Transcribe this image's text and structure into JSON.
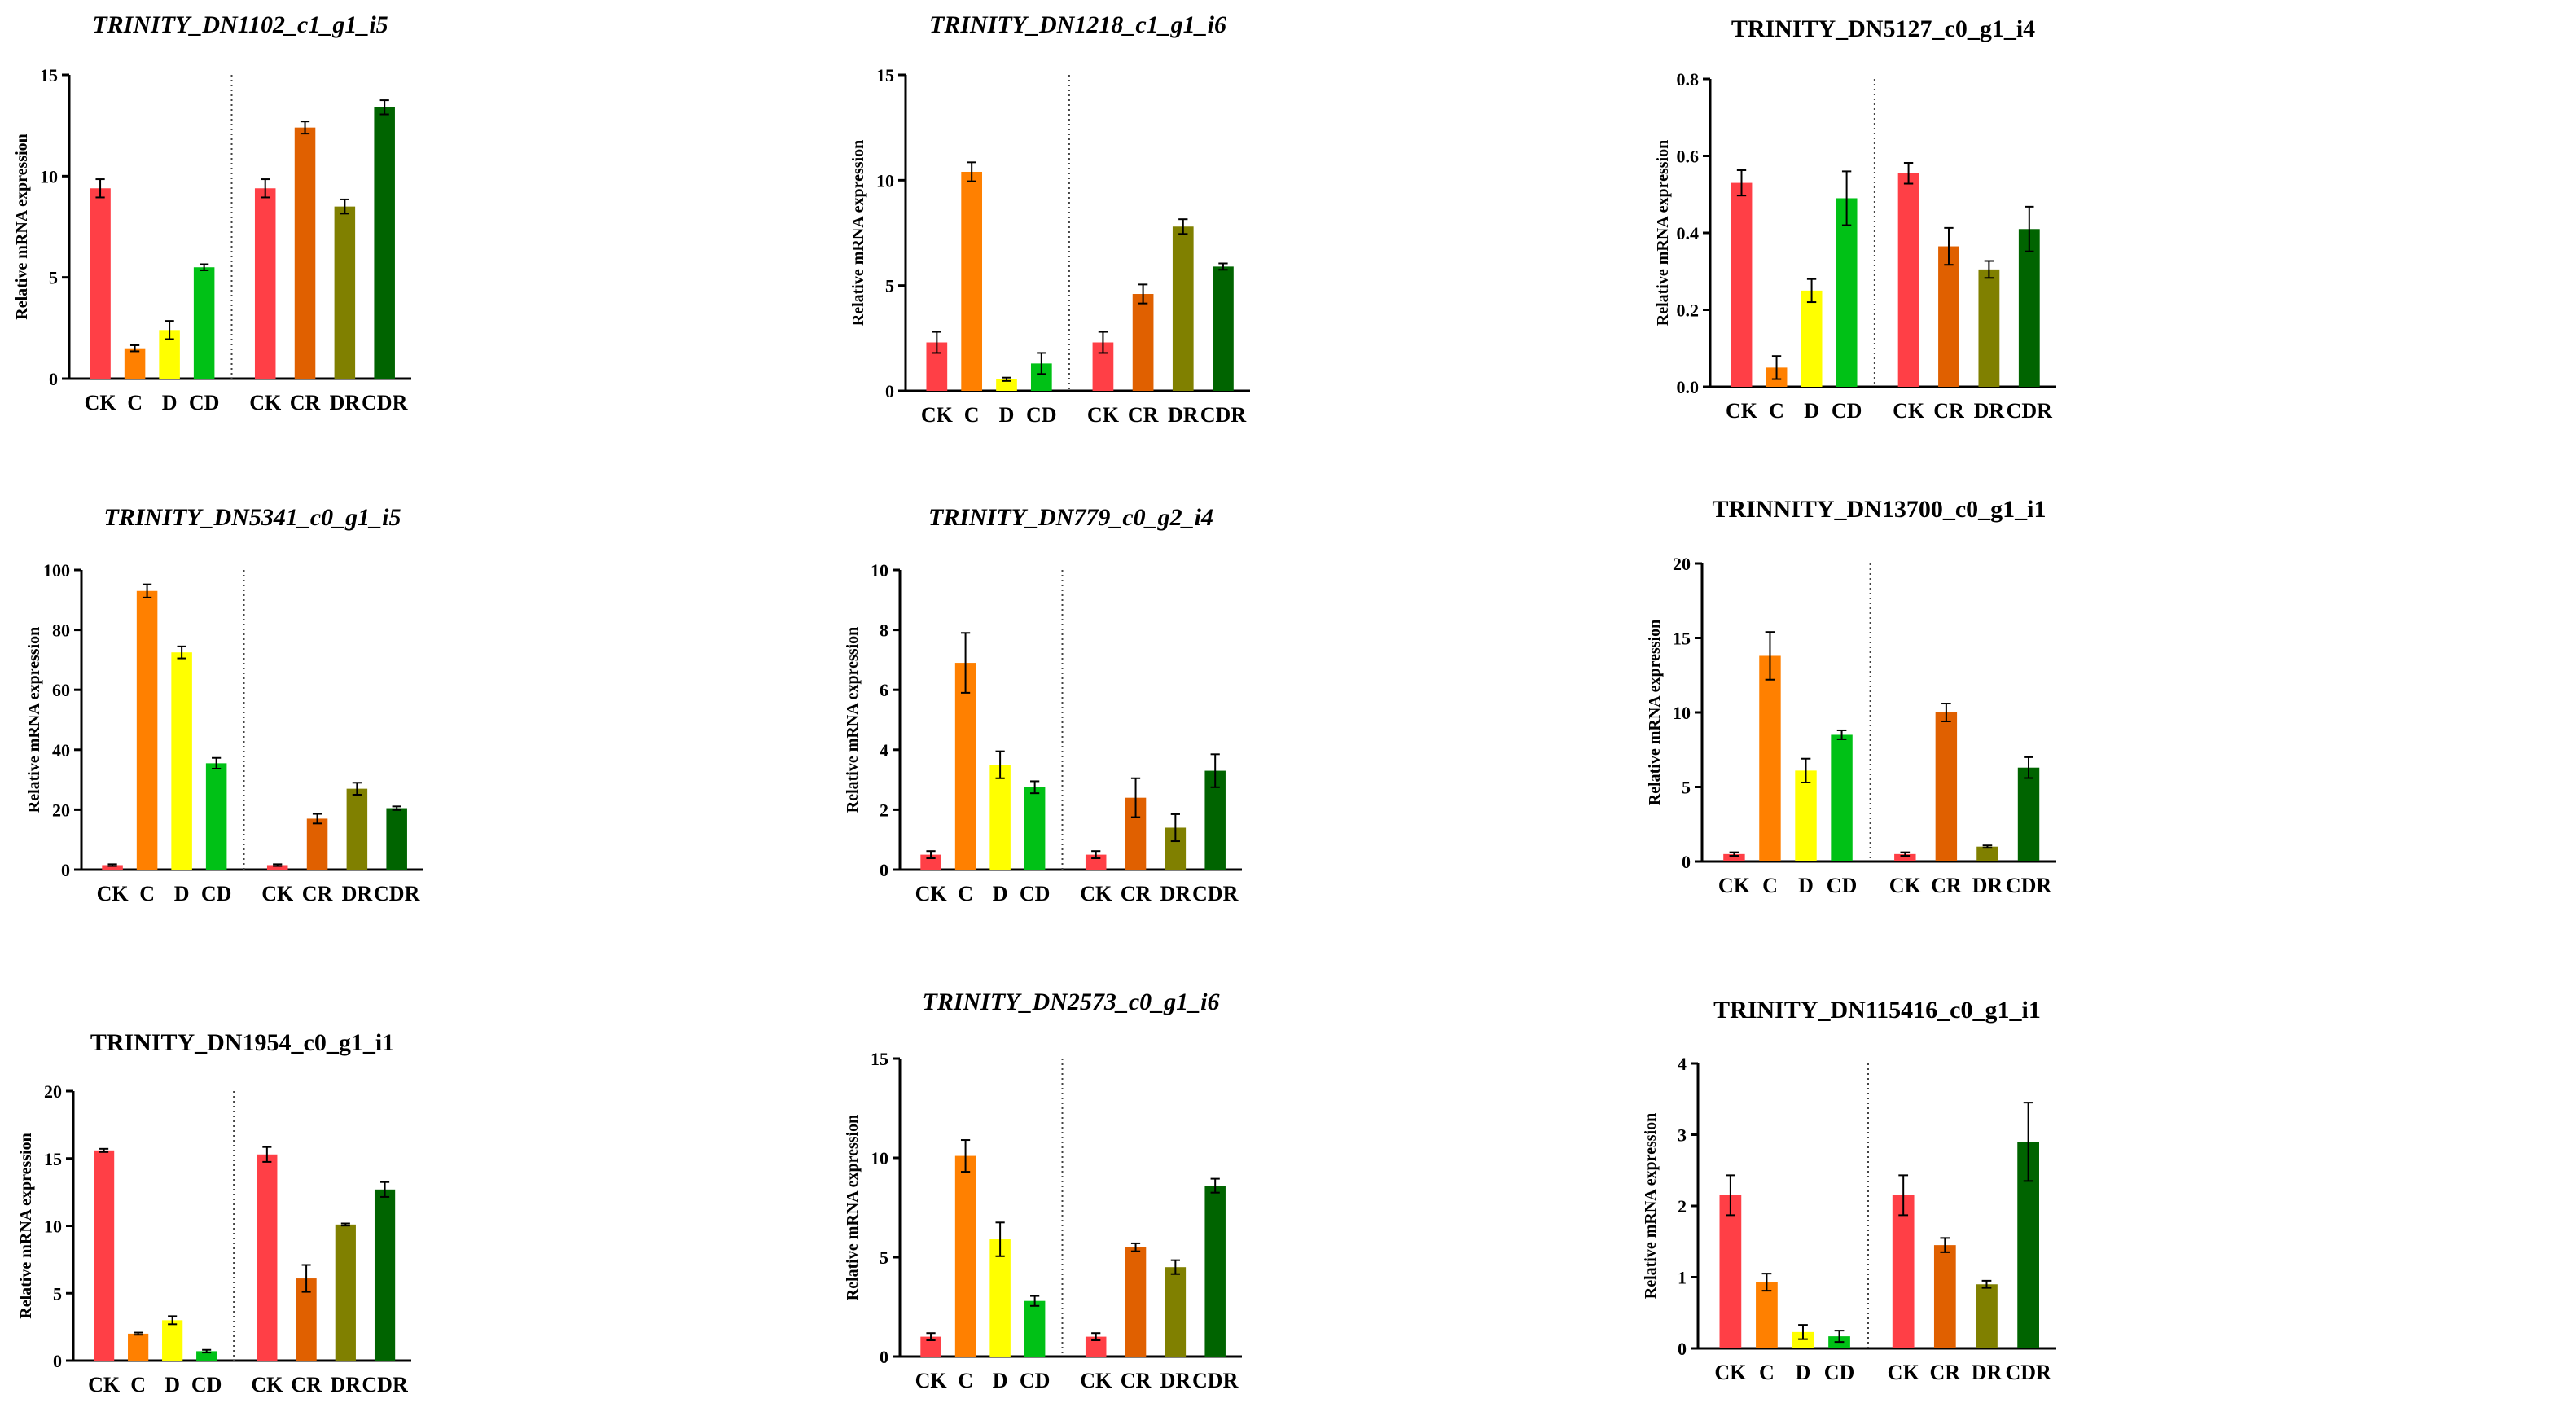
{
  "colors": {
    "CK": "#ff3f46",
    "C": "#ff8000",
    "D": "#ffff00",
    "CD": "#00c116",
    "CR": "#e06000",
    "DR": "#808000",
    "CDR": "#006400"
  },
  "ylabel": "Relative mRNA expression",
  "chart_data": [
    {
      "type": "bar",
      "title": "TRINITY_DN1102_c1_g1_i5",
      "italic": true,
      "xlabel": "",
      "ylabel": "Relative mRNA expression",
      "ylim": [
        0,
        15
      ],
      "yticks": [
        0,
        5,
        10,
        15
      ],
      "categories": [
        "CK",
        "C",
        "D",
        "CD",
        "CK",
        "CR",
        "DR",
        "CDR"
      ],
      "values": [
        9.4,
        1.5,
        2.4,
        5.5,
        9.4,
        12.4,
        8.5,
        13.4
      ],
      "errors": [
        0.45,
        0.15,
        0.45,
        0.15,
        0.45,
        0.3,
        0.35,
        0.35
      ]
    },
    {
      "type": "bar",
      "title": "TRINITY_DN1218_c1_g1_i6",
      "italic": true,
      "xlabel": "",
      "ylabel": "Relative mRNA expression",
      "ylim": [
        0,
        15
      ],
      "yticks": [
        0,
        5,
        10,
        15
      ],
      "categories": [
        "CK",
        "C",
        "D",
        "CD",
        "CK",
        "CR",
        "DR",
        "CDR"
      ],
      "values": [
        2.3,
        10.4,
        0.55,
        1.3,
        2.3,
        4.6,
        7.8,
        5.9
      ],
      "errors": [
        0.5,
        0.45,
        0.08,
        0.5,
        0.5,
        0.45,
        0.35,
        0.15
      ]
    },
    {
      "type": "bar",
      "title": "TRINITY_DN5127_c0_g1_i4",
      "italic": false,
      "xlabel": "",
      "ylabel": "Relative mRNA expression",
      "ylim": [
        0,
        0.8
      ],
      "yticks": [
        0.0,
        0.2,
        0.4,
        0.6,
        0.8
      ],
      "categories": [
        "CK",
        "C",
        "D",
        "CD",
        "CK",
        "CR",
        "DR",
        "CDR"
      ],
      "values": [
        0.53,
        0.05,
        0.25,
        0.49,
        0.555,
        0.365,
        0.305,
        0.41
      ],
      "errors": [
        0.033,
        0.03,
        0.03,
        0.07,
        0.027,
        0.048,
        0.022,
        0.058
      ]
    },
    {
      "type": "bar",
      "title": "TRINITY_DN5341_c0_g1_i5",
      "italic": true,
      "xlabel": "",
      "ylabel": "Relative mRNA expression",
      "ylim": [
        0,
        100
      ],
      "yticks": [
        0,
        20,
        40,
        60,
        80,
        100
      ],
      "categories": [
        "CK",
        "C",
        "D",
        "CD",
        "CK",
        "CR",
        "DR",
        "CDR"
      ],
      "values": [
        1.5,
        93,
        72.5,
        35.5,
        1.5,
        17,
        27,
        20.5
      ],
      "errors": [
        0.3,
        2.2,
        2.0,
        1.8,
        0.3,
        1.6,
        2.0,
        0.6
      ]
    },
    {
      "type": "bar",
      "title": "TRINITY_DN779_c0_g2_i4",
      "italic": true,
      "xlabel": "",
      "ylabel": "Relative mRNA expression",
      "ylim": [
        0,
        10
      ],
      "yticks": [
        0,
        2,
        4,
        6,
        8,
        10
      ],
      "categories": [
        "CK",
        "C",
        "D",
        "CD",
        "CK",
        "CR",
        "DR",
        "CDR"
      ],
      "values": [
        0.5,
        6.9,
        3.5,
        2.75,
        0.5,
        2.4,
        1.4,
        3.3
      ],
      "errors": [
        0.12,
        1.0,
        0.45,
        0.2,
        0.12,
        0.65,
        0.45,
        0.55
      ]
    },
    {
      "type": "bar",
      "title": "TRINNITY_DN13700_c0_g1_i1",
      "italic": false,
      "xlabel": "",
      "ylabel": "Relative mRNA expression",
      "ylim": [
        0,
        20
      ],
      "yticks": [
        0,
        5,
        10,
        15,
        20
      ],
      "categories": [
        "CK",
        "C",
        "D",
        "CD",
        "CK",
        "CR",
        "DR",
        "CDR"
      ],
      "values": [
        0.5,
        13.8,
        6.1,
        8.5,
        0.5,
        10.0,
        1.0,
        6.3
      ],
      "errors": [
        0.12,
        1.6,
        0.8,
        0.3,
        0.12,
        0.6,
        0.08,
        0.7
      ]
    },
    {
      "type": "bar",
      "title": "TRINITY_DN1954_c0_g1_i1",
      "italic": false,
      "xlabel": "",
      "ylabel": "Relative mRNA expression",
      "ylim": [
        0,
        20
      ],
      "yticks": [
        0,
        5,
        10,
        15,
        20
      ],
      "categories": [
        "CK",
        "C",
        "D",
        "CD",
        "CK",
        "CR",
        "DR",
        "CDR"
      ],
      "values": [
        15.6,
        2.0,
        3.0,
        0.7,
        15.3,
        6.1,
        10.1,
        12.7
      ],
      "errors": [
        0.12,
        0.08,
        0.3,
        0.1,
        0.55,
        1.0,
        0.08,
        0.55
      ]
    },
    {
      "type": "bar",
      "title": "TRINITY_DN2573_c0_g1_i6",
      "italic": true,
      "xlabel": "",
      "ylabel": "Relative mRNA expression",
      "ylim": [
        0,
        15
      ],
      "yticks": [
        0,
        5,
        10,
        15
      ],
      "categories": [
        "CK",
        "C",
        "D",
        "CD",
        "CK",
        "CR",
        "DR",
        "CDR"
      ],
      "values": [
        1.0,
        10.1,
        5.9,
        2.8,
        1.0,
        5.5,
        4.5,
        8.6
      ],
      "errors": [
        0.18,
        0.8,
        0.85,
        0.25,
        0.18,
        0.2,
        0.35,
        0.35
      ]
    },
    {
      "type": "bar",
      "title": "TRINITY_DN115416_c0_g1_i1",
      "italic": false,
      "xlabel": "",
      "ylabel": "Relative mRNA expression",
      "ylim": [
        0,
        4
      ],
      "yticks": [
        0,
        1,
        2,
        3,
        4
      ],
      "categories": [
        "CK",
        "C",
        "D",
        "CD",
        "CK",
        "CR",
        "DR",
        "CDR"
      ],
      "values": [
        2.15,
        0.93,
        0.23,
        0.17,
        2.15,
        1.45,
        0.9,
        2.9
      ],
      "errors": [
        0.28,
        0.12,
        0.1,
        0.08,
        0.28,
        0.1,
        0.05,
        0.55
      ]
    }
  ]
}
